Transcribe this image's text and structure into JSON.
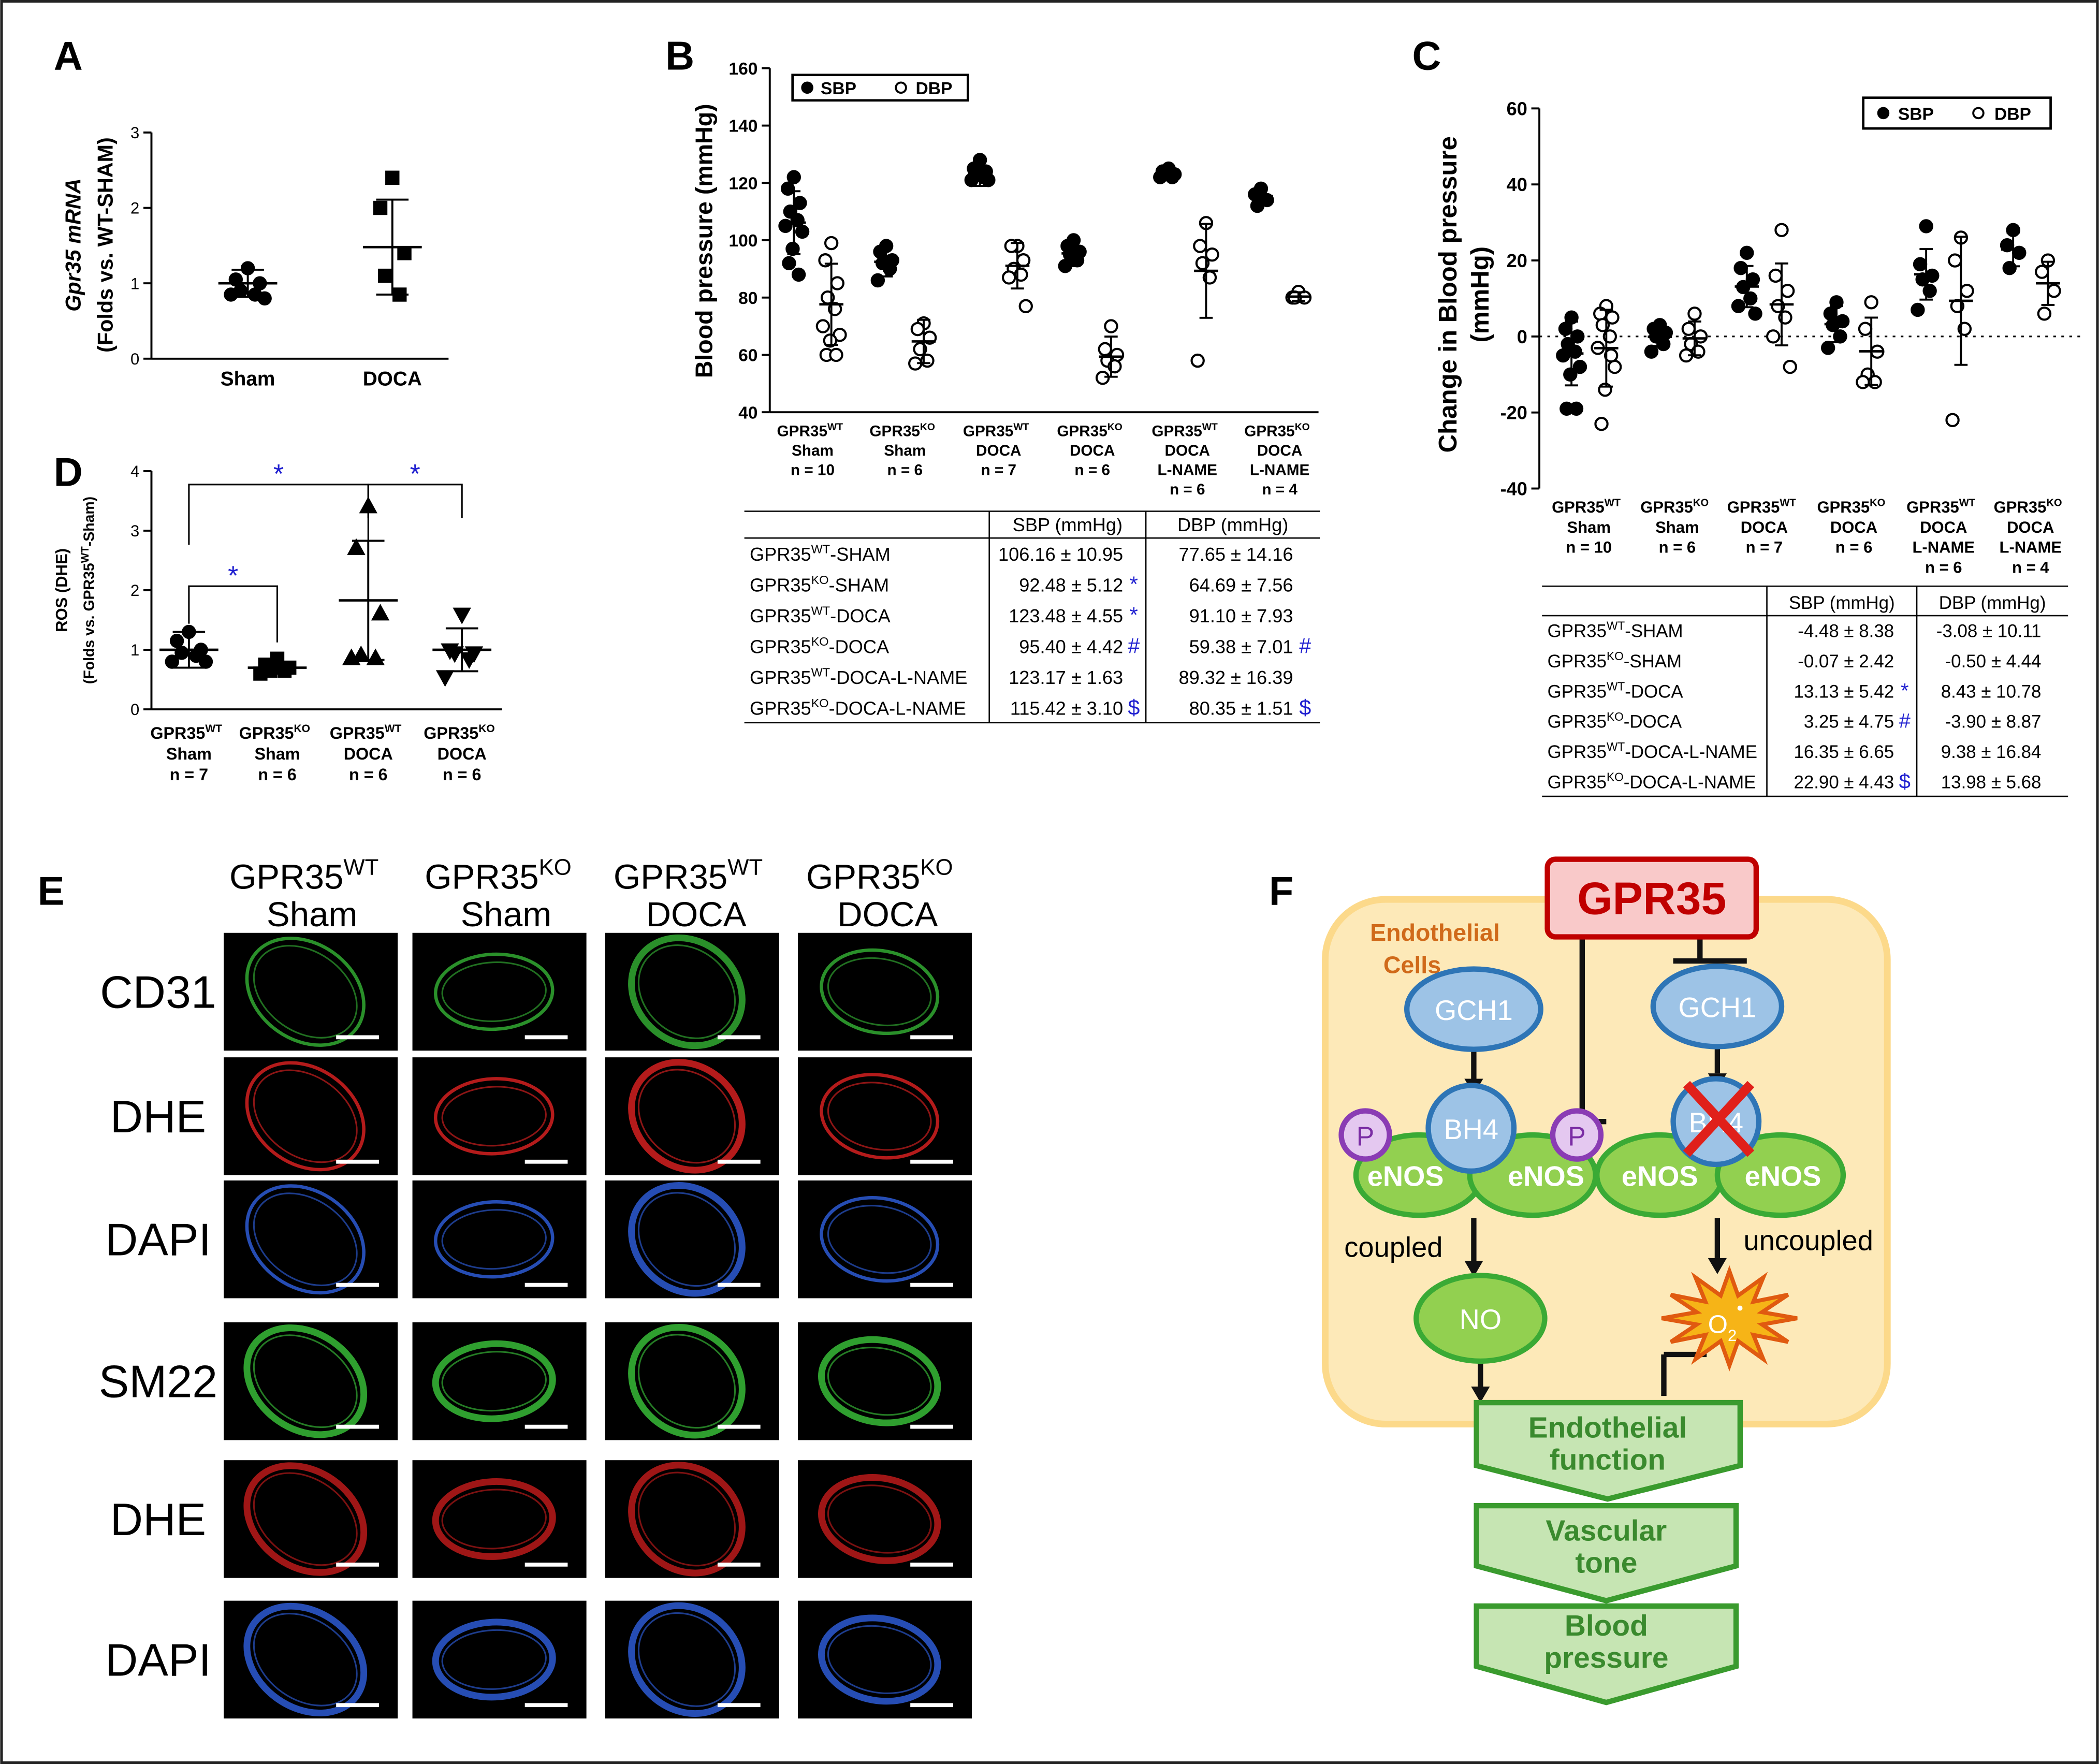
{
  "chart_data": [
    {
      "type": "dotplot",
      "panel": "A",
      "ylabel": [
        "Gpr35 mRNA",
        "(Folds vs. WT-SHAM)"
      ],
      "categories": [
        "Sham",
        "DOCA"
      ],
      "ylim": [
        0,
        3
      ],
      "yticks": [
        0,
        1,
        2,
        3
      ],
      "series": [
        {
          "markers": [
            "circle",
            "square"
          ],
          "filled": true,
          "color": "#000000",
          "points": [
            [
              1.2,
              1.05,
              1.0,
              0.9,
              0.85,
              0.85,
              0.8
            ],
            [
              2.4,
              2.0,
              1.4,
              1.1,
              0.85
            ]
          ],
          "mean": [
            1.0,
            1.48
          ],
          "sd": [
            0.18,
            0.63
          ]
        }
      ]
    },
    {
      "type": "dotplot",
      "panel": "B",
      "ylabel": [
        "Blood pressure (mmHg)"
      ],
      "categories": [
        {
          "name": "GPR35",
          "sup": "WT",
          "lines": [
            "Sham",
            "n = 10"
          ]
        },
        {
          "name": "GPR35",
          "sup": "KO",
          "lines": [
            "Sham",
            "n = 6"
          ]
        },
        {
          "name": "GPR35",
          "sup": "WT",
          "lines": [
            "DOCA",
            "n = 7"
          ]
        },
        {
          "name": "GPR35",
          "sup": "KO",
          "lines": [
            "DOCA",
            "n = 6"
          ]
        },
        {
          "name": "GPR35",
          "sup": "WT",
          "lines": [
            "DOCA",
            "L-NAME",
            "n = 6"
          ]
        },
        {
          "name": "GPR35",
          "sup": "KO",
          "lines": [
            "DOCA",
            "L-NAME",
            "n = 4"
          ]
        }
      ],
      "ylim": [
        40,
        160
      ],
      "yticks": [
        40,
        60,
        80,
        100,
        120,
        140,
        160
      ],
      "legend": "top-left",
      "series": [
        {
          "name": "SBP",
          "marker": "circle",
          "filled": true,
          "color": "#000000",
          "points": [
            [
              122,
              118,
              113,
              110,
              107,
              105,
              103,
              97,
              92,
              88
            ],
            [
              98,
              96,
              93,
              92,
              90,
              86
            ],
            [
              128,
              125,
              124,
              123,
              122,
              121,
              121
            ],
            [
              100,
              98,
              96,
              95,
              93,
              91
            ],
            [
              125,
              124,
              123,
              123,
              122,
              122
            ],
            [
              118,
              116,
              114,
              112
            ]
          ],
          "mean": [
            106.16,
            92.48,
            123.48,
            95.4,
            123.17,
            115.42
          ],
          "sd": [
            10.95,
            5.12,
            4.55,
            4.42,
            1.63,
            3.1
          ]
        },
        {
          "name": "DBP",
          "marker": "circle",
          "filled": false,
          "color": "#000000",
          "points": [
            [
              99,
              93,
              85,
              80,
              76,
              70,
              67,
              65,
              60,
              60
            ],
            [
              71,
              69,
              66,
              62,
              58,
              57
            ],
            [
              98,
              98,
              93,
              90,
              88,
              87,
              77
            ],
            [
              70,
              62,
              60,
              58,
              56,
              52
            ],
            [
              106,
              98,
              95,
              92,
              87,
              58
            ],
            [
              82,
              80,
              80,
              80
            ]
          ],
          "mean": [
            77.65,
            64.69,
            91.1,
            59.38,
            89.32,
            80.35
          ],
          "sd": [
            14.16,
            7.56,
            7.93,
            7.01,
            16.39,
            1.51
          ]
        }
      ]
    },
    {
      "type": "dotplot",
      "panel": "C",
      "ylabel": [
        "Change in Blood pressure",
        "(mmHg)"
      ],
      "categories": [
        {
          "name": "GPR35",
          "sup": "WT",
          "lines": [
            "Sham",
            "n = 10"
          ]
        },
        {
          "name": "GPR35",
          "sup": "KO",
          "lines": [
            "Sham",
            "n = 6"
          ]
        },
        {
          "name": "GPR35",
          "sup": "WT",
          "lines": [
            "DOCA",
            "n = 7"
          ]
        },
        {
          "name": "GPR35",
          "sup": "KO",
          "lines": [
            "DOCA",
            "n = 6"
          ]
        },
        {
          "name": "GPR35",
          "sup": "WT",
          "lines": [
            "DOCA",
            "L-NAME",
            "n = 6"
          ]
        },
        {
          "name": "GPR35",
          "sup": "KO",
          "lines": [
            "DOCA",
            "L-NAME",
            "n = 4"
          ]
        }
      ],
      "ylim": [
        -40,
        60
      ],
      "yticks": [
        -40,
        -20,
        0,
        20,
        40,
        60
      ],
      "legend": "top-right",
      "zero_line": true,
      "series": [
        {
          "name": "SBP",
          "marker": "circle",
          "filled": true,
          "color": "#000000",
          "points": [
            [
              5,
              2,
              0,
              -2,
              -4,
              -5,
              -8,
              -10,
              -19,
              -19
            ],
            [
              3,
              2,
              1,
              0,
              -2,
              -4
            ],
            [
              22,
              18,
              15,
              13,
              10,
              8,
              6
            ],
            [
              9,
              6,
              4,
              3,
              0,
              -3
            ],
            [
              29,
              19,
              16,
              15,
              12,
              7
            ],
            [
              28,
              24,
              22,
              18
            ]
          ],
          "mean": [
            -4.48,
            -0.07,
            13.13,
            3.25,
            16.35,
            22.9
          ],
          "sd": [
            8.38,
            2.42,
            5.42,
            4.75,
            6.65,
            4.43
          ]
        },
        {
          "name": "DBP",
          "marker": "circle",
          "filled": false,
          "color": "#000000",
          "points": [
            [
              8,
              6,
              5,
              3,
              0,
              -3,
              -8,
              -14,
              -23,
              -5
            ],
            [
              6,
              2,
              0,
              -2,
              -4,
              -5
            ],
            [
              28,
              16,
              12,
              8,
              5,
              0,
              -8
            ],
            [
              9,
              2,
              -4,
              -10,
              -12,
              -12
            ],
            [
              26,
              20,
              12,
              8,
              2,
              -22
            ],
            [
              20,
              17,
              12,
              6
            ]
          ],
          "mean": [
            -3.08,
            -0.5,
            8.43,
            -3.9,
            9.38,
            13.98
          ],
          "sd": [
            10.11,
            4.44,
            10.78,
            8.87,
            16.84,
            5.68
          ]
        }
      ]
    },
    {
      "type": "dotplot",
      "panel": "D",
      "ylabel": [
        "ROS (DHE)",
        {
          "pre": "(Folds vs. GPR35",
          "sup": "WT",
          "post": "-Sham)"
        }
      ],
      "categories": [
        {
          "name": "GPR35",
          "sup": "WT",
          "lines": [
            "Sham",
            "n = 7"
          ]
        },
        {
          "name": "GPR35",
          "sup": "KO",
          "lines": [
            "Sham",
            "n = 6"
          ]
        },
        {
          "name": "GPR35",
          "sup": "WT",
          "lines": [
            "DOCA",
            "n = 6"
          ]
        },
        {
          "name": "GPR35",
          "sup": "KO",
          "lines": [
            "DOCA",
            "n = 6"
          ]
        }
      ],
      "ylim": [
        0,
        4
      ],
      "yticks": [
        0,
        1,
        2,
        3,
        4
      ],
      "series": [
        {
          "markers": [
            "circle",
            "square",
            "triangle-up",
            "triangle-down"
          ],
          "filled": true,
          "color": "#000000",
          "points": [
            [
              1.3,
              1.15,
              1.0,
              0.95,
              0.9,
              0.8,
              0.8
            ],
            [
              0.85,
              0.75,
              0.7,
              0.65,
              0.65,
              0.6
            ],
            [
              3.4,
              2.7,
              1.6,
              0.9,
              0.85,
              0.85
            ],
            [
              1.6,
              1.0,
              0.95,
              0.95,
              0.85,
              0.55
            ]
          ],
          "mean": [
            1.0,
            0.7,
            1.83,
            1.0
          ],
          "sd": [
            0.3,
            0.1,
            1.0,
            0.36
          ]
        }
      ],
      "significance": [
        {
          "groups": [
            0,
            2
          ],
          "label": "*"
        },
        {
          "groups": [
            2,
            3
          ],
          "label": "*"
        },
        {
          "groups": [
            0,
            1
          ],
          "label": "*"
        }
      ],
      "significance_color": "#1f1fd0"
    }
  ],
  "tables": [
    {
      "panel": "B",
      "header": [
        "SBP (mmHg)",
        "DBP (mmHg)"
      ],
      "rows": [
        {
          "group": {
            "name": "GPR35",
            "sup": "WT",
            "suffix": "-SHAM"
          },
          "sbp": "106.16 ± 10.95",
          "dbp": "77.65 ± 14.16"
        },
        {
          "group": {
            "name": "GPR35",
            "sup": "KO",
            "suffix": "-SHAM"
          },
          "sbp": "92.48 ± 5.12",
          "sbp_mark": "*",
          "dbp": "64.69 ± 7.56"
        },
        {
          "group": {
            "name": "GPR35",
            "sup": "WT",
            "suffix": "-DOCA"
          },
          "sbp": "123.48 ± 4.55",
          "sbp_mark": "*",
          "dbp": "91.10 ± 7.93"
        },
        {
          "group": {
            "name": "GPR35",
            "sup": "KO",
            "suffix": "-DOCA"
          },
          "sbp": "95.40 ± 4.42",
          "sbp_mark": "#",
          "dbp": "59.38 ± 7.01",
          "dbp_mark": "#"
        },
        {
          "group": {
            "name": "GPR35",
            "sup": "WT",
            "suffix": "-DOCA-L-NAME"
          },
          "sbp": "123.17 ± 1.63",
          "dbp": "89.32 ± 16.39"
        },
        {
          "group": {
            "name": "GPR35",
            "sup": "KO",
            "suffix": "-DOCA-L-NAME"
          },
          "sbp": "115.42 ± 3.10",
          "sbp_mark": "$",
          "dbp": "80.35 ± 1.51",
          "dbp_mark": "$"
        }
      ]
    },
    {
      "panel": "C",
      "header": [
        "SBP (mmHg)",
        "DBP (mmHg)"
      ],
      "rows": [
        {
          "group": {
            "name": "GPR35",
            "sup": "WT",
            "suffix": "-SHAM"
          },
          "sbp": "-4.48 ± 8.38",
          "dbp": "-3.08 ± 10.11"
        },
        {
          "group": {
            "name": "GPR35",
            "sup": "KO",
            "suffix": "-SHAM"
          },
          "sbp": "-0.07 ± 2.42",
          "dbp": "-0.50 ± 4.44"
        },
        {
          "group": {
            "name": "GPR35",
            "sup": "WT",
            "suffix": "-DOCA"
          },
          "sbp": "13.13 ± 5.42",
          "sbp_mark": "*",
          "dbp": "8.43 ± 10.78"
        },
        {
          "group": {
            "name": "GPR35",
            "sup": "KO",
            "suffix": "-DOCA"
          },
          "sbp": "3.25 ± 4.75",
          "sbp_mark": "#",
          "dbp": "-3.90 ± 8.87"
        },
        {
          "group": {
            "name": "GPR35",
            "sup": "WT",
            "suffix": "-DOCA-L-NAME"
          },
          "sbp": "16.35 ± 6.65",
          "dbp": "9.38 ± 16.84"
        },
        {
          "group": {
            "name": "GPR35",
            "sup": "KO",
            "suffix": "-DOCA-L-NAME"
          },
          "sbp": "22.90 ± 4.43",
          "sbp_mark": "$",
          "dbp": "13.98 ± 5.68"
        }
      ]
    }
  ],
  "images": {
    "panel": "E",
    "columns": [
      {
        "name": "GPR35",
        "sup": "WT",
        "line2": "Sham"
      },
      {
        "name": "GPR35",
        "sup": "KO",
        "line2": "Sham"
      },
      {
        "name": "GPR35",
        "sup": "WT",
        "line2": "DOCA"
      },
      {
        "name": "GPR35",
        "sup": "KO",
        "line2": "DOCA"
      }
    ],
    "rows": [
      {
        "label": "CD31",
        "color": "#2fa02f"
      },
      {
        "label": "DHE",
        "color": "#c81e1e"
      },
      {
        "label": "DAPI",
        "color": "#2a55c8"
      },
      {
        "label": "SM22",
        "color": "#34b034"
      },
      {
        "label": "DHE",
        "color": "#b01818"
      },
      {
        "label": "DAPI",
        "color": "#2a55c8"
      }
    ]
  },
  "diagram": {
    "panel": "F",
    "gpr35": "GPR35",
    "cell_label": [
      "Endothelial",
      "Cells"
    ],
    "gch1": [
      "GCH1",
      "GCH1"
    ],
    "bh4": [
      "BH4",
      "BH4"
    ],
    "p": [
      "P",
      "P"
    ],
    "enos": [
      "eNOS",
      "eNOS",
      "eNOS",
      "eNOS"
    ],
    "coupled": "coupled",
    "uncoupled": "uncoupled",
    "no": "NO",
    "o2": {
      "base": "O",
      "sub": "2",
      "sup": "•"
    },
    "outcomes": [
      [
        "Endothelial",
        "function"
      ],
      [
        "Vascular",
        "tone"
      ],
      [
        "Blood",
        "pressure"
      ]
    ]
  }
}
